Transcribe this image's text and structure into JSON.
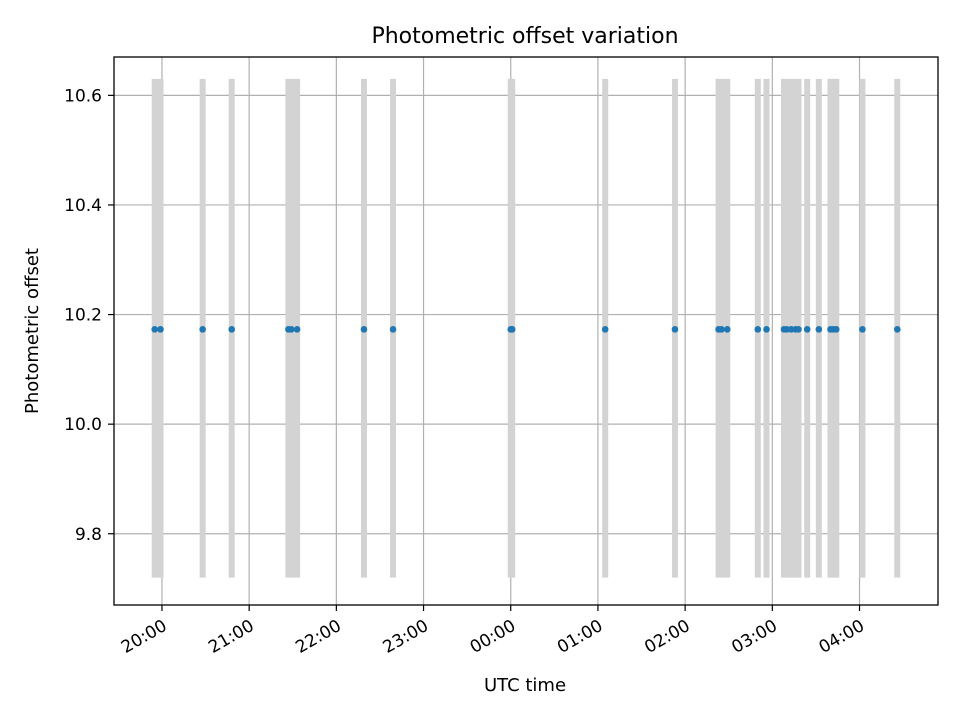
{
  "chart_data": {
    "type": "scatter",
    "title": "Photometric offset variation",
    "xlabel": "UTC time",
    "ylabel": "Photometric offset",
    "x_axis": {
      "type": "time",
      "range": [
        "19:27",
        "04:54"
      ],
      "ticks": [
        "20:00",
        "21:00",
        "22:00",
        "23:00",
        "00:00",
        "01:00",
        "02:00",
        "03:00",
        "04:00"
      ]
    },
    "y_axis": {
      "range": [
        9.67,
        10.67
      ],
      "ticks": [
        "9.8",
        "10.0",
        "10.2",
        "10.4",
        "10.6"
      ]
    },
    "grid": true,
    "error_bars": {
      "color": "#d3d3d3",
      "low": 9.72,
      "high": 10.63
    },
    "marker_color": "#1f77b4",
    "points": [
      {
        "x": "19:55",
        "y": 10.173
      },
      {
        "x": "19:59",
        "y": 10.173
      },
      {
        "x": "20:28",
        "y": 10.173
      },
      {
        "x": "20:48",
        "y": 10.173
      },
      {
        "x": "21:27",
        "y": 10.173
      },
      {
        "x": "21:29",
        "y": 10.173
      },
      {
        "x": "21:33",
        "y": 10.173
      },
      {
        "x": "22:19",
        "y": 10.173
      },
      {
        "x": "22:39",
        "y": 10.173
      },
      {
        "x": "00:00",
        "y": 10.173
      },
      {
        "x": "00:01",
        "y": 10.173
      },
      {
        "x": "01:05",
        "y": 10.173
      },
      {
        "x": "01:53",
        "y": 10.173
      },
      {
        "x": "02:23",
        "y": 10.173
      },
      {
        "x": "02:25",
        "y": 10.173
      },
      {
        "x": "02:29",
        "y": 10.173
      },
      {
        "x": "02:50",
        "y": 10.173
      },
      {
        "x": "02:56",
        "y": 10.173
      },
      {
        "x": "03:08",
        "y": 10.173
      },
      {
        "x": "03:10",
        "y": 10.173
      },
      {
        "x": "03:13",
        "y": 10.173
      },
      {
        "x": "03:16",
        "y": 10.173
      },
      {
        "x": "03:18",
        "y": 10.173
      },
      {
        "x": "03:24",
        "y": 10.173
      },
      {
        "x": "03:32",
        "y": 10.173
      },
      {
        "x": "03:40",
        "y": 10.173
      },
      {
        "x": "03:42",
        "y": 10.173
      },
      {
        "x": "03:44",
        "y": 10.173
      },
      {
        "x": "04:02",
        "y": 10.173
      },
      {
        "x": "04:26",
        "y": 10.173
      }
    ]
  }
}
